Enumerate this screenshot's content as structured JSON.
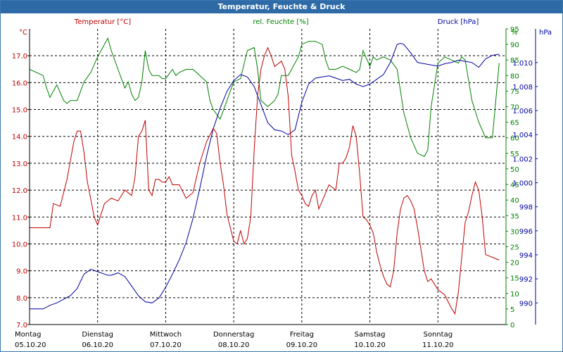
{
  "window": {
    "title": "Temperatur, Feuchte & Druck"
  },
  "chart_data": {
    "type": "line",
    "title": "Temperatur, Feuchte & Druck",
    "grid": true,
    "legend_placement": "top",
    "colors": {
      "temperature": "#c00000",
      "humidity": "#008000",
      "pressure": "#0000a0",
      "grid": "#000000"
    },
    "axes": {
      "temperature": {
        "label": "Temperatur [°C]",
        "unit": "°C",
        "ylim": [
          7.0,
          18.0
        ],
        "ticks": [
          "7.0",
          "8.0",
          "9.0",
          "10.0",
          "11.0",
          "12.0",
          "13.0",
          "14.0",
          "15.0",
          "16.0",
          "17.0"
        ]
      },
      "humidity": {
        "label": "rel. Feuchte [%]",
        "unit": "%",
        "ylim": [
          0,
          95
        ],
        "ticks": [
          "0",
          "5",
          "10",
          "15",
          "20",
          "25",
          "30",
          "35",
          "40",
          "45",
          "50",
          "55",
          "60",
          "65",
          "70",
          "75",
          "80",
          "85",
          "90",
          "95"
        ]
      },
      "pressure": {
        "label": "Druck [hPa]",
        "unit": "hPa",
        "ylim": [
          988.2,
          1012.8
        ],
        "ticks": [
          "990",
          "992",
          "994",
          "996",
          "998",
          "1.000",
          "1.002",
          "1.004",
          "1.006",
          "1.008",
          "1.010"
        ]
      }
    },
    "x_days": [
      {
        "day": "Montag",
        "date": "05.10.20"
      },
      {
        "day": "Dienstag",
        "date": "06.10.20"
      },
      {
        "day": "Mittwoch",
        "date": "07.10.20"
      },
      {
        "day": "Donnerstag",
        "date": "08.10.20"
      },
      {
        "day": "Freitag",
        "date": "09.10.20"
      },
      {
        "day": "Samstag",
        "date": "10.10.20"
      },
      {
        "day": "Sonntag",
        "date": "11.10.20"
      }
    ],
    "xlim": [
      0,
      7
    ],
    "series": [
      {
        "name": "Temperatur",
        "axis": "temperature",
        "x": [
          0.0,
          0.1,
          0.2,
          0.3,
          0.35,
          0.45,
          0.55,
          0.65,
          0.7,
          0.75,
          0.8,
          0.85,
          0.95,
          1.0,
          1.1,
          1.15,
          1.2,
          1.3,
          1.4,
          1.5,
          1.55,
          1.6,
          1.65,
          1.7,
          1.75,
          1.8,
          1.85,
          1.9,
          1.95,
          2.0,
          2.05,
          2.1,
          2.15,
          2.2,
          2.3,
          2.4,
          2.5,
          2.6,
          2.7,
          2.75,
          2.8,
          2.85,
          2.9,
          2.95,
          3.0,
          3.05,
          3.1,
          3.15,
          3.2,
          3.25,
          3.3,
          3.35,
          3.4,
          3.45,
          3.5,
          3.55,
          3.6,
          3.7,
          3.75,
          3.8,
          3.85,
          3.9,
          3.95,
          4.0,
          4.05,
          4.1,
          4.15,
          4.2,
          4.25,
          4.3,
          4.4,
          4.5,
          4.55,
          4.6,
          4.65,
          4.7,
          4.75,
          4.8,
          4.85,
          4.9,
          4.95,
          5.0,
          5.05,
          5.1,
          5.15,
          5.2,
          5.25,
          5.3,
          5.35,
          5.4,
          5.45,
          5.5,
          5.55,
          5.6,
          5.65,
          5.7,
          5.8,
          5.85,
          5.9,
          5.95,
          6.0,
          6.1,
          6.2,
          6.25,
          6.3,
          6.35,
          6.4,
          6.45,
          6.5,
          6.55,
          6.6,
          6.65,
          6.7,
          6.8,
          6.9
        ],
        "values": [
          10.6,
          10.6,
          10.6,
          10.6,
          11.5,
          11.4,
          12.4,
          13.8,
          14.2,
          14.2,
          13.4,
          12.3,
          11.0,
          10.7,
          11.5,
          11.6,
          11.7,
          11.6,
          12.0,
          11.8,
          12.5,
          14.0,
          14.2,
          14.6,
          12.0,
          11.8,
          12.4,
          12.4,
          12.3,
          12.3,
          12.5,
          12.2,
          12.2,
          12.2,
          11.7,
          11.9,
          13.0,
          13.8,
          14.3,
          14.1,
          13.0,
          12.2,
          11.1,
          10.6,
          10.1,
          10.0,
          10.5,
          10.0,
          10.2,
          11.0,
          13.5,
          15.5,
          16.5,
          17.0,
          17.3,
          17.0,
          16.6,
          16.8,
          16.5,
          15.5,
          13.3,
          12.7,
          12.0,
          11.8,
          11.5,
          11.4,
          11.8,
          12.0,
          11.3,
          11.6,
          12.2,
          12.0,
          13.0,
          13.0,
          13.2,
          13.6,
          14.4,
          14.0,
          12.6,
          11.0,
          10.9,
          10.7,
          10.4,
          9.7,
          9.2,
          8.8,
          8.5,
          8.4,
          9.0,
          10.4,
          11.3,
          11.7,
          11.8,
          11.6,
          11.3,
          10.6,
          9.0,
          8.6,
          8.7,
          8.5,
          8.3,
          8.1,
          7.6,
          7.4,
          8.2,
          9.5,
          10.8,
          11.2,
          11.8,
          12.3,
          12.0,
          11.0,
          9.6,
          9.5,
          9.4
        ]
      },
      {
        "name": "rel. Feuchte",
        "axis": "humidity",
        "x": [
          0.0,
          0.1,
          0.2,
          0.25,
          0.3,
          0.35,
          0.4,
          0.5,
          0.55,
          0.6,
          0.7,
          0.8,
          0.9,
          1.0,
          1.1,
          1.15,
          1.2,
          1.3,
          1.4,
          1.45,
          1.5,
          1.55,
          1.6,
          1.65,
          1.7,
          1.75,
          1.8,
          1.85,
          1.9,
          1.95,
          2.0,
          2.1,
          2.15,
          2.2,
          2.3,
          2.4,
          2.5,
          2.6,
          2.65,
          2.7,
          2.8,
          2.9,
          3.0,
          3.1,
          3.2,
          3.3,
          3.35,
          3.4,
          3.5,
          3.6,
          3.65,
          3.7,
          3.8,
          3.9,
          3.95,
          4.0,
          4.1,
          4.2,
          4.3,
          4.35,
          4.4,
          4.5,
          4.6,
          4.7,
          4.8,
          4.85,
          4.9,
          5.0,
          5.05,
          5.1,
          5.2,
          5.3,
          5.4,
          5.45,
          5.5,
          5.6,
          5.7,
          5.8,
          5.85,
          5.9,
          6.0,
          6.1,
          6.2,
          6.3,
          6.35,
          6.4,
          6.5,
          6.6,
          6.7,
          6.8,
          6.9
        ],
        "values": [
          82,
          81,
          80,
          76,
          73,
          75,
          77,
          72,
          71,
          72,
          72,
          78,
          81,
          86,
          90,
          92,
          88,
          82,
          76,
          78,
          74,
          72,
          73,
          78,
          88,
          82,
          80,
          80,
          80,
          79,
          79,
          82,
          80,
          81,
          82,
          82,
          80,
          78,
          72,
          69,
          66,
          72,
          78,
          79,
          88,
          89,
          82,
          72,
          70,
          72,
          74,
          80,
          80,
          84,
          86,
          90,
          91,
          91,
          90,
          85,
          82,
          82,
          83,
          82,
          81,
          82,
          88,
          83,
          86,
          85,
          86,
          85,
          82,
          75,
          68,
          60,
          55,
          54,
          56,
          70,
          84,
          86,
          85,
          84,
          86,
          85,
          72,
          65,
          60,
          60,
          84
        ]
      },
      {
        "name": "Druck",
        "axis": "pressure",
        "x": [
          0.0,
          0.1,
          0.2,
          0.3,
          0.4,
          0.5,
          0.6,
          0.7,
          0.75,
          0.8,
          0.9,
          1.0,
          1.1,
          1.15,
          1.2,
          1.3,
          1.4,
          1.5,
          1.6,
          1.7,
          1.8,
          1.9,
          2.0,
          2.1,
          2.2,
          2.3,
          2.4,
          2.5,
          2.6,
          2.7,
          2.8,
          2.9,
          3.0,
          3.1,
          3.2,
          3.3,
          3.4,
          3.5,
          3.6,
          3.7,
          3.8,
          3.9,
          4.0,
          4.1,
          4.2,
          4.3,
          4.4,
          4.5,
          4.6,
          4.7,
          4.8,
          4.9,
          5.0,
          5.1,
          5.2,
          5.3,
          5.4,
          5.45,
          5.5,
          5.6,
          5.7,
          5.8,
          5.9,
          6.0,
          6.1,
          6.2,
          6.3,
          6.4,
          6.5,
          6.6,
          6.7,
          6.8,
          6.9
        ],
        "values": [
          989.5,
          989.5,
          989.5,
          989.8,
          990.0,
          990.3,
          990.6,
          991.2,
          991.8,
          992.4,
          992.8,
          992.6,
          992.4,
          992.3,
          992.3,
          992.5,
          992.2,
          991.4,
          990.6,
          990.1,
          990.0,
          990.4,
          991.3,
          992.4,
          993.6,
          995.0,
          997.0,
          999.5,
          1002.2,
          1004.5,
          1006.2,
          1007.6,
          1008.5,
          1009.0,
          1008.8,
          1008.0,
          1006.5,
          1005.0,
          1004.4,
          1004.3,
          1004.0,
          1004.4,
          1006.7,
          1008.2,
          1008.7,
          1008.8,
          1008.9,
          1008.7,
          1008.5,
          1008.6,
          1008.2,
          1008.0,
          1008.2,
          1008.6,
          1009.0,
          1010.0,
          1011.5,
          1011.6,
          1011.5,
          1010.8,
          1010.0,
          1009.9,
          1009.8,
          1009.7,
          1009.9,
          1010.0,
          1010.2,
          1010.1,
          1010.0,
          1009.6,
          1010.3,
          1010.6,
          1010.7
        ]
      }
    ]
  }
}
